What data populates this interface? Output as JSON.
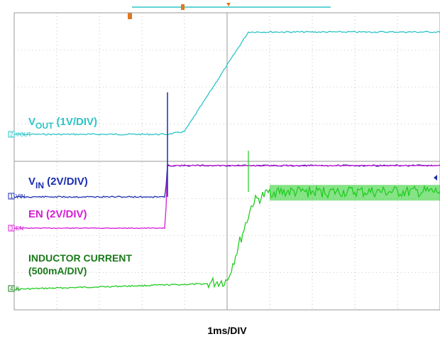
{
  "chart_data": {
    "type": "line",
    "title": "",
    "xlabel": "1ms/DIV",
    "grid": true,
    "divisions": {
      "x": 10,
      "y": 8
    },
    "x_range_ms": [
      0,
      10
    ],
    "colors": {
      "background": "#ffffff",
      "grid": "#9a9a9a",
      "vout": "#2ec4c8",
      "vin": "#1a2eb0",
      "en": "#d61ed6",
      "il": "#22cc22",
      "il_label": "#1a7a1a",
      "trigger": "#e07820"
    },
    "labels": {
      "vout_main": "V",
      "vout_sub": "OUT",
      "vout_scale": " (1V/DIV)",
      "vin_main": "V",
      "vin_sub": "IN",
      "vin_scale": " (2V/DIV)",
      "en": "EN (2V/DIV)",
      "il_line1": "INDUCTOR CURRENT",
      "il_line2": "(500mA/DIV)"
    },
    "channel_tags": {
      "vout": {
        "num": "2",
        "name": "VOUT"
      },
      "vin": {
        "num": "1",
        "name": "VIN"
      },
      "en": {
        "num": "3",
        "name": "EN"
      },
      "il": {
        "num": "4",
        "name": "IL"
      }
    },
    "series": [
      {
        "name": "VOUT",
        "x": [
          0,
          3.6,
          4.0,
          5.5,
          10
        ],
        "y_div": [
          0,
          0,
          0.1,
          3.6,
          3.6
        ]
      },
      {
        "name": "VIN",
        "x": [
          0,
          3.55,
          3.6,
          10
        ],
        "y_div": [
          0,
          0,
          2.2,
          2.2
        ]
      },
      {
        "name": "EN",
        "x": [
          0,
          3.55,
          3.6,
          10
        ],
        "y_div": [
          0,
          0,
          2.2,
          2.2
        ]
      },
      {
        "name": "IL",
        "x": [
          0,
          4.5,
          5.0,
          5.6,
          6.0,
          10
        ],
        "y_div": [
          0,
          0.2,
          0.3,
          3.2,
          3.6,
          3.6
        ]
      }
    ]
  }
}
